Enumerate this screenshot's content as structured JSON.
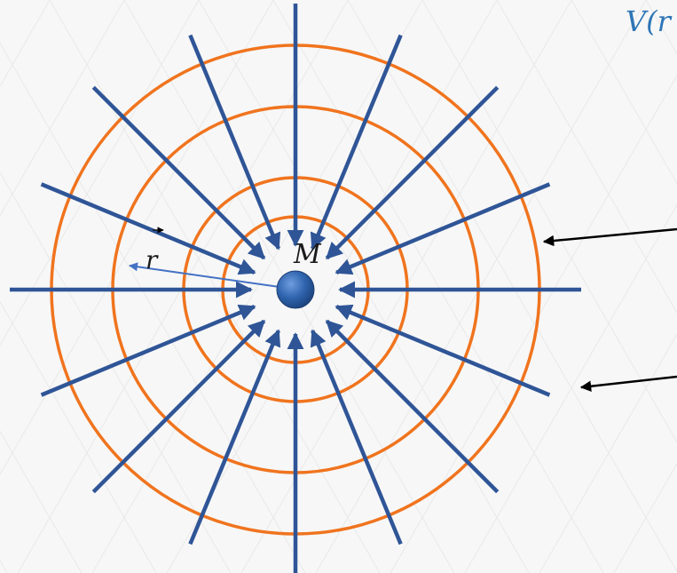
{
  "labels": {
    "top_right": "V(r",
    "mass": "M",
    "radius": "r"
  },
  "colors": {
    "background": "#f7f7f7",
    "grid": "#e9e9e9",
    "field_line": "#2f5597",
    "equipotential": "#f0741e",
    "mass_fill": "#2e63ad",
    "radius_vector": "#4472c4",
    "pointer": "#000000",
    "top_right_text": "#2e75b6"
  },
  "diagram": {
    "field_line_count": 16,
    "equipotential_count": 4
  }
}
